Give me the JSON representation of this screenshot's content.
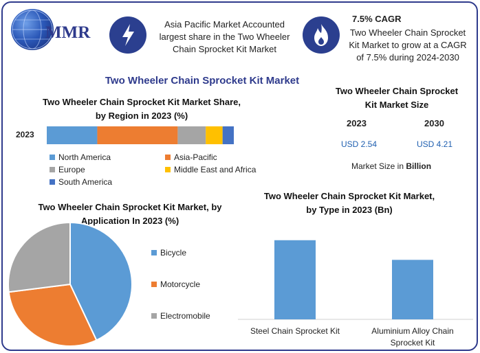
{
  "brand": {
    "logo_text": "MMR"
  },
  "header": {
    "info1": {
      "icon": "lightning-icon",
      "text": "Asia Pacific Market Accounted largest share in the Two Wheeler Chain Sprocket Kit Market"
    },
    "info2": {
      "icon": "flame-icon",
      "cagr": "7.5% CAGR",
      "text": "Two Wheeler Chain Sprocket Kit Market to grow at a CAGR of 7.5% during 2024-2030"
    }
  },
  "title": "Two Wheeler Chain Sprocket Kit Market",
  "colors": {
    "north_america": "#5b9bd5",
    "asia_pacific": "#ed7d31",
    "europe": "#a5a5a5",
    "middle_east": "#ffc000",
    "south_america": "#4472c4",
    "bicycle": "#5b9bd5",
    "motorcycle": "#ed7d31",
    "electromobile": "#a5a5a5",
    "type_bar": "#5b9bd5",
    "accent": "#2e3a8c",
    "value_blue": "#1f5fb0"
  },
  "market_size": {
    "title": "Two Wheeler Chain Sprocket Kit Market Size",
    "year1": "2023",
    "value1": "USD 2.54",
    "year2": "2030",
    "value2": "USD 4.21",
    "note_prefix": "Market Size in ",
    "note_unit": "Billion"
  },
  "chart_data": [
    {
      "type": "bar",
      "orientation": "horizontal-stacked",
      "title": "Two Wheeler Chain Sprocket Kit Market Share, by Region in 2023 (%)",
      "categories": [
        "2023"
      ],
      "series": [
        {
          "name": "North America",
          "values": [
            27
          ]
        },
        {
          "name": "Asia-Pacific",
          "values": [
            43
          ]
        },
        {
          "name": "Europe",
          "values": [
            15
          ]
        },
        {
          "name": "Middle East and Africa",
          "values": [
            9
          ]
        },
        {
          "name": "South America",
          "values": [
            6
          ]
        }
      ],
      "legend": "bottom"
    },
    {
      "type": "pie",
      "title": "Two Wheeler Chain Sprocket Kit Market, by Application In 2023 (%)",
      "labels": [
        "Bicycle",
        "Motorcycle",
        "Electromobile"
      ],
      "values": [
        43,
        30,
        27
      ],
      "legend": "right"
    },
    {
      "type": "bar",
      "title": "Two Wheeler Chain Sprocket Kit Market, by Type in 2023 (Bn)",
      "categories": [
        "Steel Chain Sprocket Kit",
        "Aluminium Alloy Chain Sprocket Kit"
      ],
      "values": [
        1.45,
        1.09
      ],
      "ylim": [
        0,
        1.9
      ]
    }
  ]
}
